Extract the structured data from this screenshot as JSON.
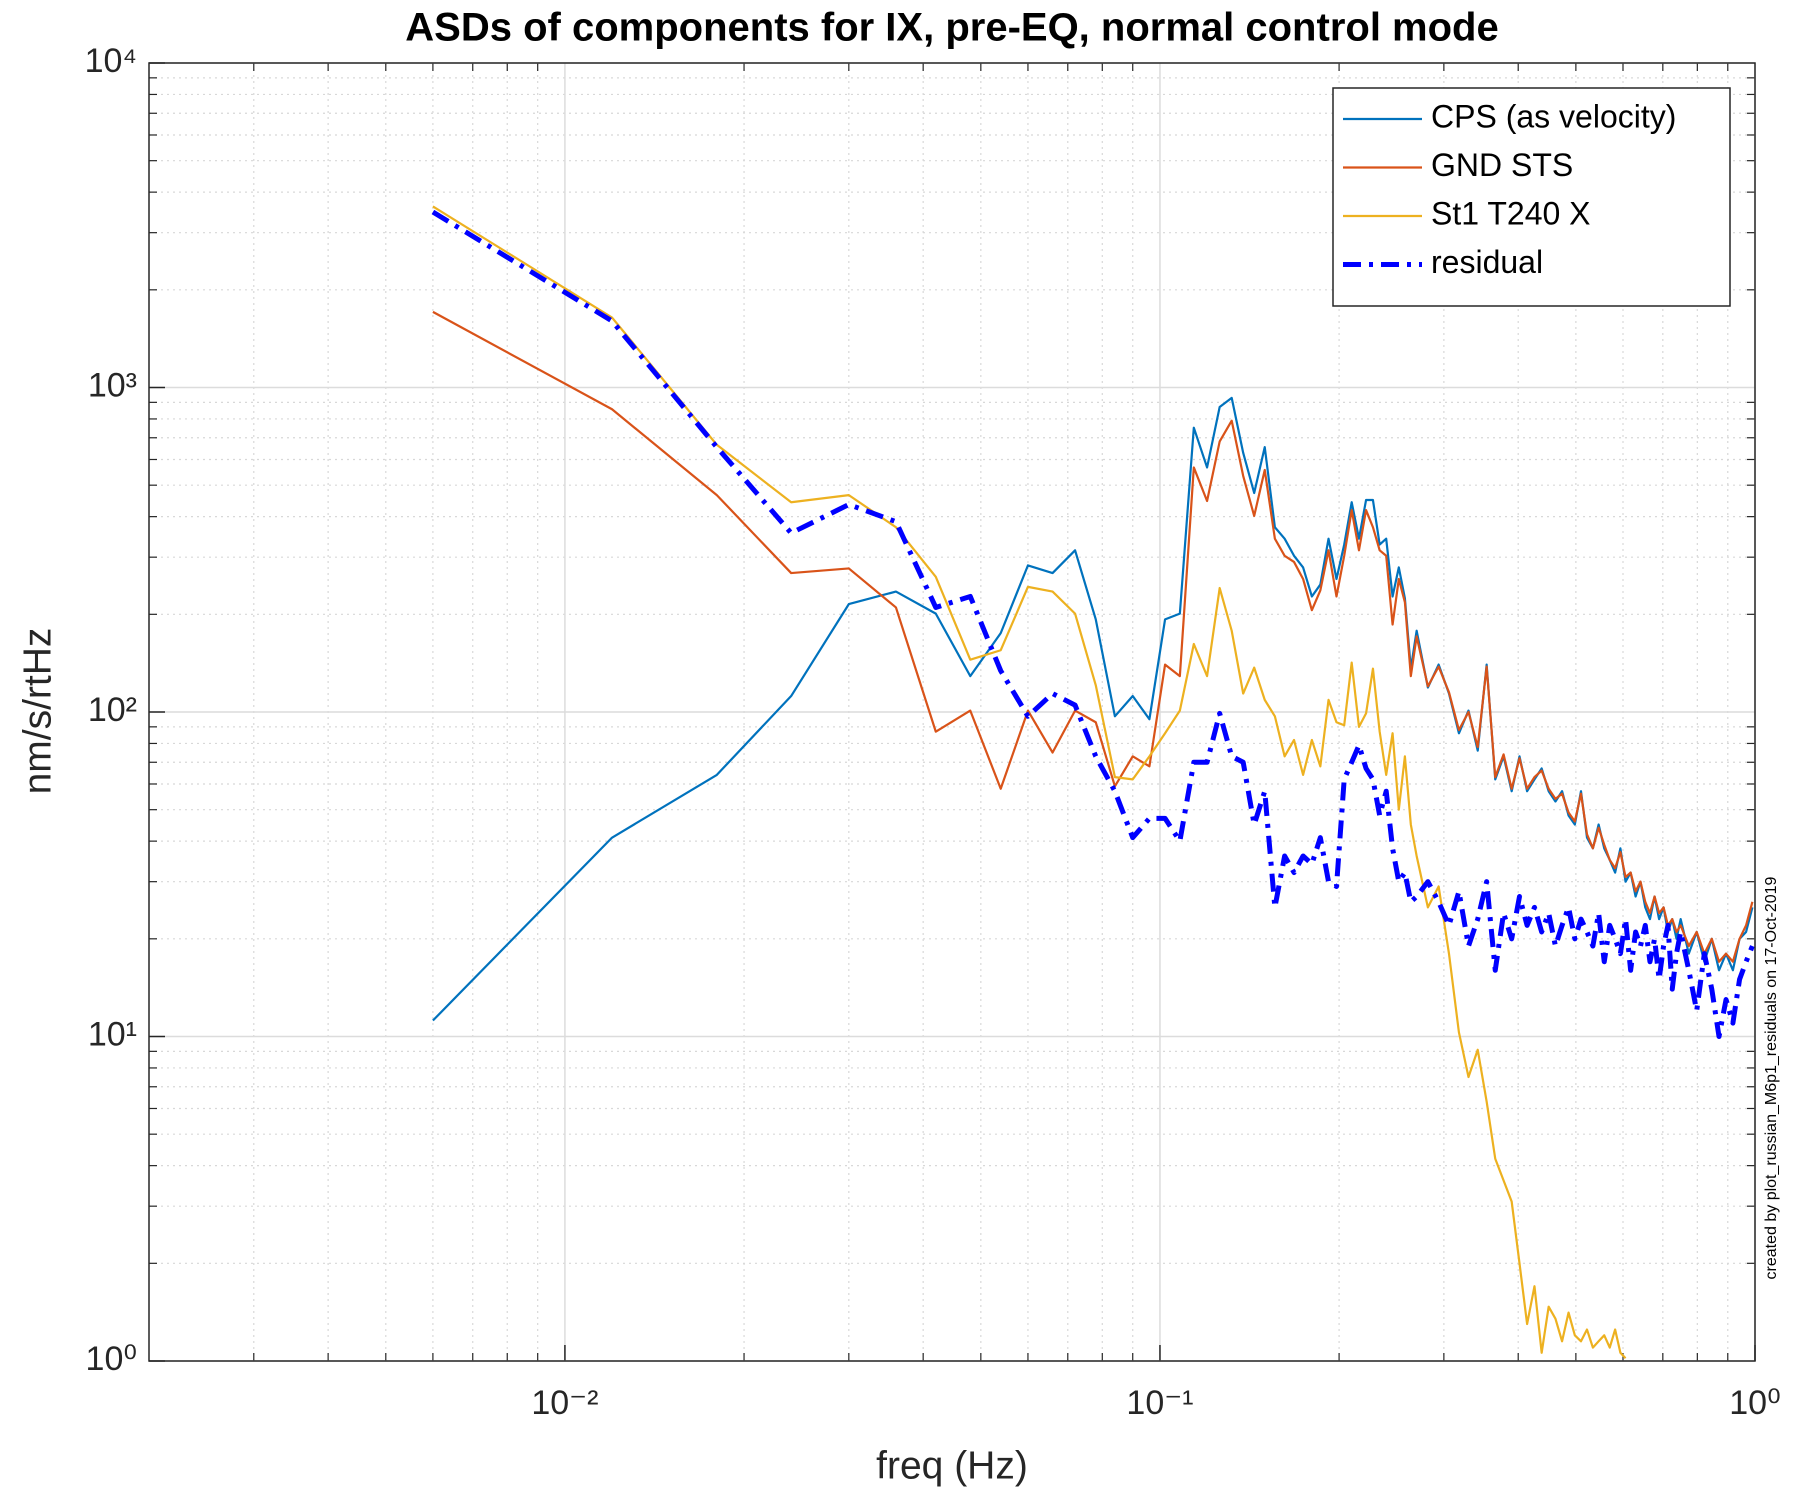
{
  "chart_data": {
    "type": "line",
    "title": "ASDs of components for IX, pre-EQ, normal control mode",
    "xlabel": "freq (Hz)",
    "ylabel": "nm/s/rtHz",
    "note": "created by plot_russian_M6p1_residuals on 17-Oct-2019",
    "xscale": "log",
    "yscale": "log",
    "grid": true,
    "minor_grid": true,
    "legend": "upper right",
    "xlim": [
      0.002,
      1
    ],
    "ylim": [
      1,
      10000
    ],
    "xticks": [
      {
        "value": 0.01,
        "label": "10⁻²"
      },
      {
        "value": 0.1,
        "label": "10⁻¹"
      },
      {
        "value": 1,
        "label": "10⁰"
      }
    ],
    "yticks": [
      {
        "value": 1,
        "label": "10⁰"
      },
      {
        "value": 10,
        "label": "10¹"
      },
      {
        "value": 100,
        "label": "10²"
      },
      {
        "value": 1000,
        "label": "10³"
      },
      {
        "value": 10000,
        "label": "10⁴"
      }
    ],
    "x": [
      0.006,
      0.012,
      0.018,
      0.024,
      0.03,
      0.036,
      0.042,
      0.048,
      0.054,
      0.06,
      0.066,
      0.072,
      0.078,
      0.084,
      0.09,
      0.096,
      0.102,
      0.108,
      0.114,
      0.12,
      0.126,
      0.132,
      0.138,
      0.144,
      0.15,
      0.156,
      0.162,
      0.168,
      0.174,
      0.18,
      0.186,
      0.192,
      0.198,
      0.204,
      0.21,
      0.216,
      0.222,
      0.228,
      0.234,
      0.24,
      0.246,
      0.252,
      0.258,
      0.264,
      0.27,
      0.282,
      0.294,
      0.306,
      0.318,
      0.33,
      0.342,
      0.354,
      0.366,
      0.378,
      0.39,
      0.402,
      0.414,
      0.426,
      0.438,
      0.45,
      0.462,
      0.474,
      0.486,
      0.498,
      0.51,
      0.522,
      0.534,
      0.546,
      0.558,
      0.57,
      0.582,
      0.594,
      0.606,
      0.618,
      0.63,
      0.642,
      0.654,
      0.666,
      0.678,
      0.69,
      0.702,
      0.714,
      0.726,
      0.738,
      0.75,
      0.774,
      0.798,
      0.822,
      0.846,
      0.87,
      0.894,
      0.918,
      0.942,
      0.966,
      0.99
    ],
    "series": [
      {
        "name": "CPS (as velocity)",
        "color": "#0072bd",
        "values": [
          11.2,
          41,
          64,
          112,
          215,
          235,
          201,
          129,
          175,
          283,
          268,
          315,
          193,
          97,
          112,
          95,
          193,
          201,
          752,
          567,
          871,
          929,
          629,
          473,
          655,
          371,
          342,
          303,
          279,
          227,
          247,
          342,
          257,
          328,
          443,
          342,
          450,
          450,
          328,
          342,
          227,
          279,
          224,
          136,
          178,
          119,
          140,
          114,
          86,
          101,
          76,
          140,
          62,
          73,
          57,
          73,
          57,
          62,
          67,
          57,
          53,
          57,
          48,
          45,
          57,
          41,
          38,
          45,
          38,
          35,
          32,
          38,
          30,
          32,
          27,
          30,
          25,
          23,
          27,
          23,
          25,
          21,
          23,
          20,
          23,
          18,
          21,
          17,
          20,
          16,
          18,
          16,
          20,
          21,
          25
        ]
      },
      {
        "name": "GND STS",
        "color": "#d95319",
        "values": [
          1710,
          857,
          466,
          268,
          277,
          210,
          87,
          101,
          58,
          101,
          75,
          101,
          93,
          59,
          73,
          68,
          140,
          129,
          567,
          447,
          682,
          790,
          534,
          402,
          557,
          342,
          303,
          290,
          257,
          206,
          237,
          315,
          227,
          303,
          419,
          315,
          419,
          371,
          315,
          303,
          186,
          257,
          218,
          129,
          171,
          120,
          138,
          115,
          88,
          100,
          78,
          138,
          63,
          74,
          58,
          72,
          58,
          63,
          66,
          58,
          54,
          56,
          49,
          46,
          56,
          42,
          38,
          44,
          39,
          35,
          33,
          37,
          31,
          32,
          28,
          30,
          26,
          24,
          27,
          24,
          25,
          22,
          23,
          21,
          22,
          19,
          21,
          18,
          20,
          17,
          18,
          17,
          20,
          22,
          26
        ]
      },
      {
        "name": "St1 T240 X",
        "color": "#edb120",
        "values": [
          3614,
          1643,
          666,
          443,
          466,
          371,
          261,
          145,
          155,
          243,
          235,
          201,
          121,
          63,
          62,
          73,
          86,
          101,
          162,
          129,
          241,
          178,
          114,
          137,
          109,
          97,
          73,
          82,
          64,
          82,
          68,
          109,
          93,
          91,
          142,
          90,
          99,
          136,
          87,
          64,
          86,
          50,
          73,
          45,
          36,
          25,
          29,
          18,
          10.3,
          7.5,
          9.1,
          6.3,
          4.2,
          3.6,
          3.1,
          2.0,
          1.3,
          1.7,
          1.06,
          1.47,
          1.35,
          1.15,
          1.41,
          1.2,
          1.15,
          1.25,
          1.1,
          1.15,
          1.2,
          1.1,
          1.25,
          1.06,
          1.02,
          null,
          null,
          null,
          null,
          null,
          null,
          null,
          null,
          null,
          null,
          null,
          null,
          null,
          null,
          null,
          null,
          null,
          null,
          null,
          null,
          null,
          null
        ]
      },
      {
        "name": "residual",
        "color": "#0000ff",
        "style": "dash-dot",
        "values": [
          3474,
          1603,
          655,
          356,
          436,
          386,
          210,
          227,
          134,
          97,
          114,
          105,
          73,
          57,
          41,
          47,
          47,
          40,
          70,
          70,
          99,
          73,
          70,
          45,
          57,
          25,
          36,
          32,
          36,
          34,
          41,
          30,
          29,
          62,
          70,
          79,
          67,
          62,
          48,
          57,
          38,
          30,
          32,
          26,
          27,
          30,
          26,
          22,
          28,
          19,
          23,
          30,
          16,
          24,
          20,
          27,
          22,
          25,
          21,
          24,
          19,
          22,
          25,
          20,
          23,
          21,
          19,
          24,
          17,
          22,
          20,
          18,
          23,
          16,
          21,
          19,
          22,
          17,
          20,
          15,
          19,
          22,
          14,
          18,
          21,
          16,
          12,
          18,
          14,
          10,
          13,
          11,
          15,
          17,
          19
        ]
      }
    ]
  }
}
